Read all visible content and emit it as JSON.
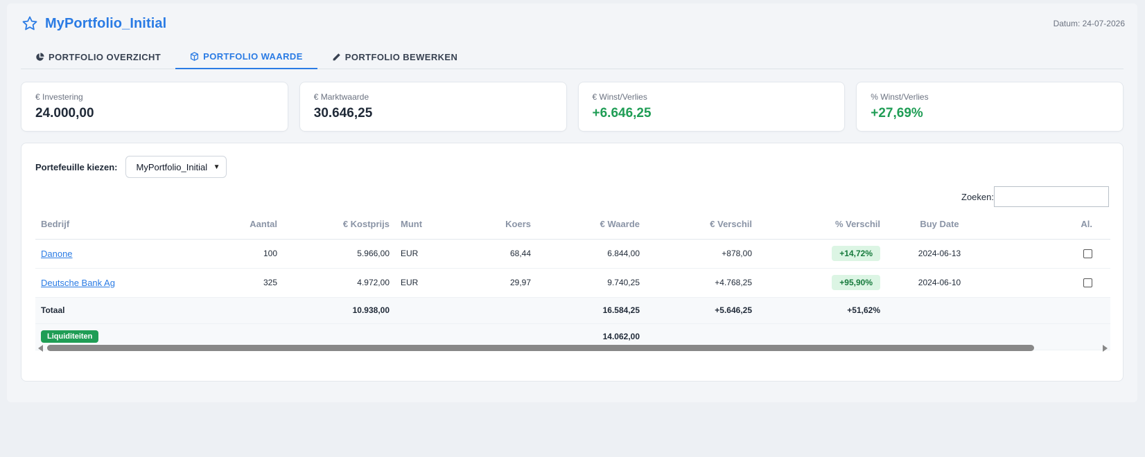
{
  "header": {
    "title": "MyPortfolio_Initial",
    "star_icon": "star-icon",
    "date": "Datum: 24-07-2026"
  },
  "tabs": [
    {
      "label": "PORTFOLIO OVERZICHT",
      "icon": "pie-chart-icon",
      "active": false
    },
    {
      "label": "PORTFOLIO WAARDE",
      "icon": "cube-icon",
      "active": true
    },
    {
      "label": "PORTFOLIO BEWERKEN",
      "icon": "pencil-icon",
      "active": false
    }
  ],
  "cards": [
    {
      "label": "€ Investering",
      "value": "24.000,00",
      "positive": false
    },
    {
      "label": "€ Marktwaarde",
      "value": "30.646,25",
      "positive": false
    },
    {
      "label": "€ Winst/Verlies",
      "value": "+6.646,25",
      "positive": true
    },
    {
      "label": "% Winst/Verlies",
      "value": "+27,69%",
      "positive": true
    }
  ],
  "portfolio_select": {
    "label": "Portefeuille kiezen:",
    "selected": "MyPortfolio_Initial"
  },
  "search": {
    "label": "Zoeken:",
    "value": ""
  },
  "table": {
    "headers": {
      "bedrijf": "Bedrijf",
      "aantal": "Aantal",
      "kostprijs": "€ Kostprijs",
      "munt": "Munt",
      "koers": "Koers",
      "waarde": "€ Waarde",
      "verschil": "€ Verschil",
      "pct_verschil": "% Verschil",
      "buy_date": "Buy Date",
      "al": "Al."
    },
    "rows": [
      {
        "bedrijf": "Danone",
        "aantal": "100",
        "kostprijs": "5.966,00",
        "munt": "EUR",
        "koers": "68,44",
        "waarde": "6.844,00",
        "verschil": "+878,00",
        "pct_verschil": "+14,72%",
        "buy_date": "2024-06-13",
        "checked": false
      },
      {
        "bedrijf": "Deutsche Bank Ag",
        "aantal": "325",
        "kostprijs": "4.972,00",
        "munt": "EUR",
        "koers": "29,97",
        "waarde": "9.740,25",
        "verschil": "+4.768,25",
        "pct_verschil": "+95,90%",
        "buy_date": "2024-06-10",
        "checked": false
      }
    ],
    "total": {
      "label": "Totaal",
      "kostprijs": "10.938,00",
      "waarde": "16.584,25",
      "verschil": "+5.646,25",
      "pct_verschil": "+51,62%"
    },
    "liquidity": {
      "label": "Liquiditeiten",
      "waarde": "14.062,00"
    }
  },
  "colors": {
    "accent": "#2a7be4",
    "positive": "#1f9d55",
    "pill_bg": "#dcf5e4"
  }
}
